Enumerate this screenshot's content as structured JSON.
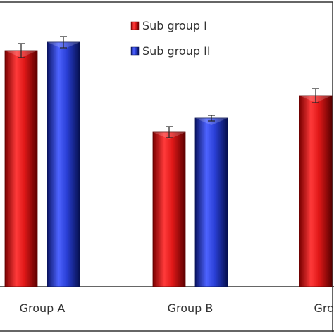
{
  "chart_data": {
    "type": "bar",
    "categories": [
      "Group A",
      "Group B",
      "Group C"
    ],
    "series": [
      {
        "name": "Sub group I",
        "color": "#e01818",
        "values": [
          84,
          55,
          68
        ],
        "errors": [
          2.5,
          2,
          2.5
        ]
      },
      {
        "name": "Sub group II",
        "color": "#2a3fd6",
        "values": [
          87,
          60,
          null
        ],
        "errors": [
          2,
          1,
          null
        ]
      }
    ],
    "ylim": [
      0,
      100
    ],
    "grid": false,
    "legend_position": "top-right"
  }
}
